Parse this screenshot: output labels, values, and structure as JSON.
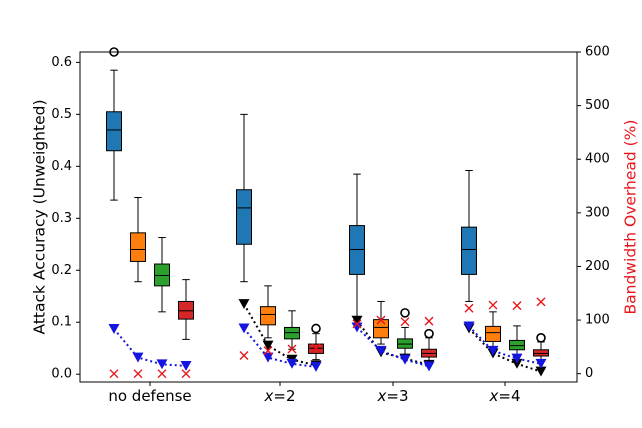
{
  "chart_data": {
    "type": "box",
    "title": "",
    "categories": [
      "no defense",
      "x=2",
      "x=3",
      "x=4"
    ],
    "xtick_labels": [
      {
        "prefix": "",
        "italic": "",
        "suffix": "no defense"
      },
      {
        "prefix": "",
        "italic": "x",
        "suffix": "=2"
      },
      {
        "prefix": "",
        "italic": "x",
        "suffix": "=3"
      },
      {
        "prefix": "",
        "italic": "x",
        "suffix": "=4"
      }
    ],
    "ylabel_left": "Attack Accuracy (Unweighted)",
    "ylabel_right": "Bandwidth Overhead (%)",
    "ylabel_right_color": "#e8141a",
    "ylim_left": [
      -0.015,
      0.62
    ],
    "ylim_right": [
      -15.5,
      600
    ],
    "yticks_left": [
      0.0,
      0.1,
      0.2,
      0.3,
      0.4,
      0.5,
      0.6
    ],
    "yticks_right": [
      0,
      100,
      200,
      300,
      400,
      500,
      600
    ],
    "box_colors": [
      "#1f77b4",
      "#ff7f0e",
      "#2ca02c",
      "#d62728"
    ],
    "groups": [
      {
        "category": "no defense",
        "boxes": [
          {
            "whisker_low": 0.335,
            "q1": 0.43,
            "median": 0.47,
            "q3": 0.505,
            "whisker_high": 0.585,
            "outliers": [
              0.62
            ]
          },
          {
            "whisker_low": 0.178,
            "q1": 0.217,
            "median": 0.24,
            "q3": 0.272,
            "whisker_high": 0.34,
            "outliers": []
          },
          {
            "whisker_low": 0.12,
            "q1": 0.17,
            "median": 0.19,
            "q3": 0.212,
            "whisker_high": 0.263,
            "outliers": []
          },
          {
            "whisker_low": 0.067,
            "q1": 0.106,
            "median": 0.122,
            "q3": 0.14,
            "whisker_high": 0.182,
            "outliers": []
          }
        ],
        "black_triangles": [],
        "blue_triangles": [
          0.087,
          0.032,
          0.019,
          0.016
        ],
        "overhead_crosses": [
          0,
          0,
          0,
          0
        ]
      },
      {
        "category": "x=2",
        "boxes": [
          {
            "whisker_low": 0.178,
            "q1": 0.25,
            "median": 0.32,
            "q3": 0.355,
            "whisker_high": 0.5,
            "outliers": []
          },
          {
            "whisker_low": 0.07,
            "q1": 0.095,
            "median": 0.115,
            "q3": 0.13,
            "whisker_high": 0.17,
            "outliers": []
          },
          {
            "whisker_low": 0.048,
            "q1": 0.068,
            "median": 0.08,
            "q3": 0.09,
            "whisker_high": 0.122,
            "outliers": []
          },
          {
            "whisker_low": 0.028,
            "q1": 0.04,
            "median": 0.05,
            "q3": 0.058,
            "whisker_high": 0.078,
            "outliers": [
              0.088
            ]
          }
        ],
        "black_triangles": [
          0.135,
          0.055,
          0.028,
          0.017
        ],
        "blue_triangles": [
          0.088,
          0.032,
          0.02,
          0.014
        ],
        "overhead_crosses": [
          34,
          43,
          46,
          48
        ]
      },
      {
        "category": "x=3",
        "boxes": [
          {
            "whisker_low": 0.11,
            "q1": 0.192,
            "median": 0.24,
            "q3": 0.286,
            "whisker_high": 0.385,
            "outliers": []
          },
          {
            "whisker_low": 0.058,
            "q1": 0.07,
            "median": 0.09,
            "q3": 0.105,
            "whisker_high": 0.14,
            "outliers": []
          },
          {
            "whisker_low": 0.038,
            "q1": 0.05,
            "median": 0.058,
            "q3": 0.068,
            "whisker_high": 0.09,
            "outliers": [
              0.118
            ]
          },
          {
            "whisker_low": 0.025,
            "q1": 0.033,
            "median": 0.04,
            "q3": 0.048,
            "whisker_high": 0.07,
            "outliers": [
              0.078
            ]
          }
        ],
        "black_triangles": [
          0.103,
          0.042,
          0.03,
          0.018
        ],
        "blue_triangles": [
          0.09,
          0.045,
          0.028,
          0.015
        ],
        "overhead_crosses": [
          93,
          100,
          97,
          98
        ]
      },
      {
        "category": "x=4",
        "boxes": [
          {
            "whisker_low": 0.14,
            "q1": 0.192,
            "median": 0.24,
            "q3": 0.283,
            "whisker_high": 0.392,
            "outliers": []
          },
          {
            "whisker_low": 0.048,
            "q1": 0.063,
            "median": 0.08,
            "q3": 0.092,
            "whisker_high": 0.12,
            "outliers": []
          },
          {
            "whisker_low": 0.035,
            "q1": 0.047,
            "median": 0.055,
            "q3": 0.065,
            "whisker_high": 0.093,
            "outliers": []
          },
          {
            "whisker_low": 0.025,
            "q1": 0.035,
            "median": 0.04,
            "q3": 0.047,
            "whisker_high": 0.062,
            "outliers": [
              0.07
            ]
          }
        ],
        "black_triangles": [
          0.088,
          0.04,
          0.02,
          0.005
        ],
        "blue_triangles": [
          0.092,
          0.045,
          0.03,
          0.02
        ],
        "overhead_crosses": [
          122,
          128,
          127,
          134
        ]
      }
    ],
    "black_series_color": "#000000",
    "blue_series_color": "#1515e0",
    "cross_color": "#e8141a",
    "grid": false,
    "legend": "none"
  }
}
